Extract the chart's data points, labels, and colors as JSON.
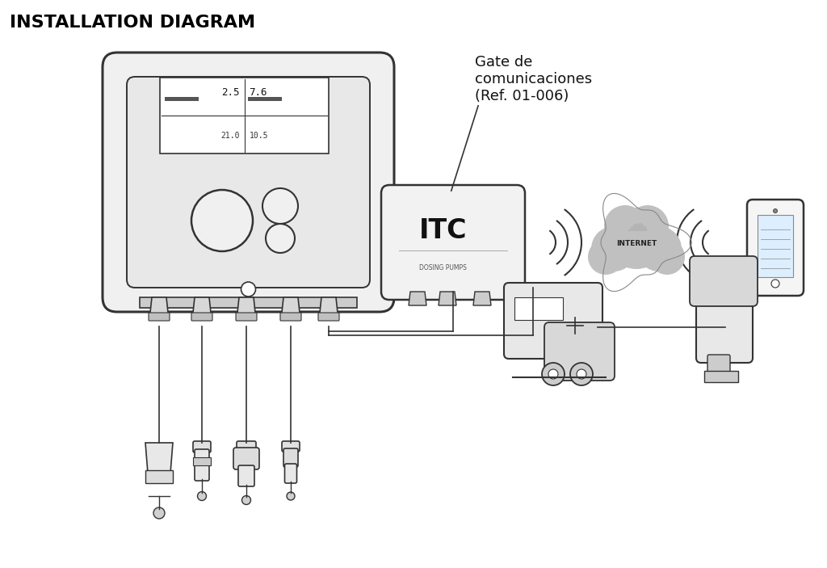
{
  "title": "INSTALLATION DIAGRAM",
  "title_fontsize": 16,
  "title_fontweight": "bold",
  "background_color": "#ffffff",
  "line_color": "#333333",
  "annotation_label": "Gate de\ncomunicaciones\n(Ref. 01-006)",
  "display_values": [
    "2.5",
    "7.6",
    "21.0",
    "10.5"
  ]
}
